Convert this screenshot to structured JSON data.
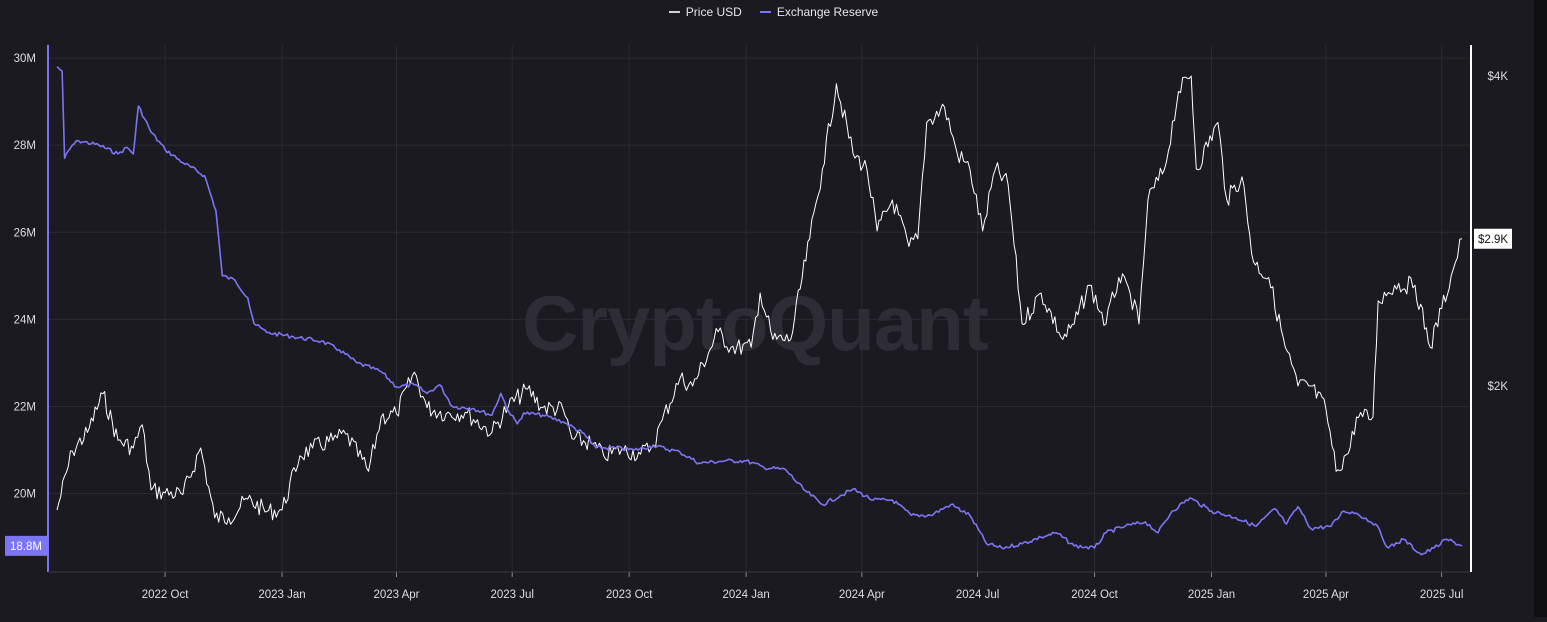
{
  "legend": {
    "price_label": "Price USD",
    "reserve_label": "Exchange Reserve"
  },
  "watermark": "CryptoQuant",
  "colors": {
    "price": "#ffffff",
    "reserve": "#7b74f5",
    "grid": "#2b2a32",
    "background": "#1b1a20",
    "axis_text": "#dcdce2"
  },
  "chart_data": {
    "type": "line",
    "x_ticks": [
      "2022 Oct",
      "2023 Jan",
      "2023 Apr",
      "2023 Jul",
      "2023 Oct",
      "2024 Jan",
      "2024 Apr",
      "2024 Jul",
      "2024 Oct",
      "2025 Jan",
      "2025 Apr",
      "2025 Jul"
    ],
    "x_range": [
      "2022-07-08",
      "2025-07-17"
    ],
    "left_axis": {
      "ticks": [
        "20M",
        "22M",
        "24M",
        "26M",
        "28M",
        "30M"
      ],
      "values": [
        20,
        22,
        24,
        26,
        28,
        30
      ],
      "range": [
        18.2,
        30.3
      ]
    },
    "right_axis": {
      "ticks": [
        "$2K",
        "$4K"
      ],
      "values": [
        2000,
        4000
      ],
      "range": [
        800,
        4200
      ]
    },
    "current_tags": {
      "reserve": "18.8M",
      "price": "$2.9K"
    },
    "series": [
      {
        "name": "Price USD",
        "axis": "right",
        "points": [
          [
            "2022-07-08",
            1200
          ],
          [
            "2022-07-20",
            1580
          ],
          [
            "2022-08-01",
            1700
          ],
          [
            "2022-08-13",
            1950
          ],
          [
            "2022-08-25",
            1650
          ],
          [
            "2022-09-06",
            1600
          ],
          [
            "2022-09-13",
            1750
          ],
          [
            "2022-09-20",
            1330
          ],
          [
            "2022-10-01",
            1310
          ],
          [
            "2022-10-15",
            1300
          ],
          [
            "2022-10-29",
            1600
          ],
          [
            "2022-11-09",
            1150
          ],
          [
            "2022-11-20",
            1150
          ],
          [
            "2022-12-05",
            1270
          ],
          [
            "2022-12-20",
            1190
          ],
          [
            "2023-01-01",
            1200
          ],
          [
            "2023-01-15",
            1550
          ],
          [
            "2023-01-25",
            1600
          ],
          [
            "2023-02-10",
            1650
          ],
          [
            "2023-02-20",
            1690
          ],
          [
            "2023-03-10",
            1450
          ],
          [
            "2023-03-20",
            1800
          ],
          [
            "2023-04-01",
            1820
          ],
          [
            "2023-04-15",
            2090
          ],
          [
            "2023-04-25",
            1860
          ],
          [
            "2023-05-10",
            1820
          ],
          [
            "2023-05-25",
            1830
          ],
          [
            "2023-06-15",
            1700
          ],
          [
            "2023-06-28",
            1870
          ],
          [
            "2023-07-13",
            1980
          ],
          [
            "2023-07-25",
            1860
          ],
          [
            "2023-08-10",
            1850
          ],
          [
            "2023-08-17",
            1660
          ],
          [
            "2023-09-01",
            1630
          ],
          [
            "2023-09-11",
            1550
          ],
          [
            "2023-09-25",
            1590
          ],
          [
            "2023-10-10",
            1560
          ],
          [
            "2023-10-20",
            1620
          ],
          [
            "2023-10-27",
            1780
          ],
          [
            "2023-11-10",
            2050
          ],
          [
            "2023-11-20",
            2000
          ],
          [
            "2023-12-10",
            2350
          ],
          [
            "2023-12-20",
            2250
          ],
          [
            "2024-01-05",
            2250
          ],
          [
            "2024-01-12",
            2600
          ],
          [
            "2024-01-22",
            2300
          ],
          [
            "2024-02-05",
            2300
          ],
          [
            "2024-02-20",
            2950
          ],
          [
            "2024-03-01",
            3400
          ],
          [
            "2024-03-12",
            3950
          ],
          [
            "2024-03-25",
            3500
          ],
          [
            "2024-04-05",
            3400
          ],
          [
            "2024-04-13",
            3000
          ],
          [
            "2024-04-25",
            3200
          ],
          [
            "2024-05-08",
            2900
          ],
          [
            "2024-05-15",
            2950
          ],
          [
            "2024-05-22",
            3700
          ],
          [
            "2024-06-05",
            3800
          ],
          [
            "2024-06-15",
            3500
          ],
          [
            "2024-06-25",
            3400
          ],
          [
            "2024-07-05",
            3000
          ],
          [
            "2024-07-15",
            3400
          ],
          [
            "2024-07-25",
            3300
          ],
          [
            "2024-08-05",
            2400
          ],
          [
            "2024-08-20",
            2600
          ],
          [
            "2024-09-06",
            2300
          ],
          [
            "2024-09-15",
            2400
          ],
          [
            "2024-09-27",
            2650
          ],
          [
            "2024-10-10",
            2400
          ],
          [
            "2024-10-20",
            2700
          ],
          [
            "2024-10-29",
            2600
          ],
          [
            "2024-11-05",
            2400
          ],
          [
            "2024-11-12",
            3200
          ],
          [
            "2024-11-25",
            3400
          ],
          [
            "2024-12-06",
            3900
          ],
          [
            "2024-12-16",
            4000
          ],
          [
            "2024-12-20",
            3400
          ],
          [
            "2025-01-06",
            3700
          ],
          [
            "2025-01-13",
            3200
          ],
          [
            "2025-01-25",
            3350
          ],
          [
            "2025-02-03",
            2800
          ],
          [
            "2025-02-15",
            2700
          ],
          [
            "2025-02-28",
            2250
          ],
          [
            "2025-03-10",
            2000
          ],
          [
            "2025-03-20",
            2000
          ],
          [
            "2025-04-01",
            1850
          ],
          [
            "2025-04-09",
            1450
          ],
          [
            "2025-04-20",
            1600
          ],
          [
            "2025-04-25",
            1800
          ],
          [
            "2025-05-08",
            1800
          ],
          [
            "2025-05-12",
            2550
          ],
          [
            "2025-05-25",
            2650
          ],
          [
            "2025-06-10",
            2650
          ],
          [
            "2025-06-22",
            2250
          ],
          [
            "2025-07-01",
            2500
          ],
          [
            "2025-07-10",
            2750
          ],
          [
            "2025-07-17",
            2950
          ]
        ]
      },
      {
        "name": "Exchange Reserve",
        "axis": "left",
        "points": [
          [
            "2022-07-08",
            29.8
          ],
          [
            "2022-07-12",
            29.7
          ],
          [
            "2022-07-14",
            27.7
          ],
          [
            "2022-07-20",
            28.0
          ],
          [
            "2022-07-25",
            28.1
          ],
          [
            "2022-08-10",
            28.0
          ],
          [
            "2022-08-25",
            27.8
          ],
          [
            "2022-09-01",
            27.95
          ],
          [
            "2022-09-06",
            27.8
          ],
          [
            "2022-09-10",
            28.9
          ],
          [
            "2022-09-20",
            28.3
          ],
          [
            "2022-10-01",
            27.9
          ],
          [
            "2022-10-15",
            27.6
          ],
          [
            "2022-11-01",
            27.3
          ],
          [
            "2022-11-10",
            26.5
          ],
          [
            "2022-11-15",
            25.0
          ],
          [
            "2022-11-25",
            24.9
          ],
          [
            "2022-12-05",
            24.5
          ],
          [
            "2022-12-10",
            23.9
          ],
          [
            "2022-12-20",
            23.7
          ],
          [
            "2023-01-10",
            23.6
          ],
          [
            "2023-02-01",
            23.5
          ],
          [
            "2023-02-15",
            23.3
          ],
          [
            "2023-03-01",
            23.0
          ],
          [
            "2023-03-20",
            22.8
          ],
          [
            "2023-04-01",
            22.45
          ],
          [
            "2023-04-15",
            22.5
          ],
          [
            "2023-04-25",
            22.3
          ],
          [
            "2023-05-05",
            22.5
          ],
          [
            "2023-05-15",
            22.0
          ],
          [
            "2023-06-01",
            21.95
          ],
          [
            "2023-06-15",
            21.8
          ],
          [
            "2023-06-22",
            22.3
          ],
          [
            "2023-06-28",
            21.9
          ],
          [
            "2023-07-05",
            21.6
          ],
          [
            "2023-07-10",
            21.85
          ],
          [
            "2023-07-25",
            21.8
          ],
          [
            "2023-08-10",
            21.65
          ],
          [
            "2023-08-25",
            21.4
          ],
          [
            "2023-09-05",
            21.05
          ],
          [
            "2023-09-20",
            21.05
          ],
          [
            "2023-10-05",
            21.0
          ],
          [
            "2023-10-20",
            21.1
          ],
          [
            "2023-11-10",
            20.95
          ],
          [
            "2023-11-25",
            20.7
          ],
          [
            "2023-12-15",
            20.75
          ],
          [
            "2024-01-01",
            20.75
          ],
          [
            "2024-01-15",
            20.6
          ],
          [
            "2024-02-01",
            20.55
          ],
          [
            "2024-02-15",
            20.1
          ],
          [
            "2024-03-01",
            19.75
          ],
          [
            "2024-03-15",
            19.95
          ],
          [
            "2024-03-25",
            20.1
          ],
          [
            "2024-04-10",
            19.85
          ],
          [
            "2024-04-25",
            19.85
          ],
          [
            "2024-05-10",
            19.5
          ],
          [
            "2024-05-25",
            19.5
          ],
          [
            "2024-06-10",
            19.75
          ],
          [
            "2024-06-25",
            19.5
          ],
          [
            "2024-07-08",
            18.85
          ],
          [
            "2024-07-20",
            18.75
          ],
          [
            "2024-08-05",
            18.85
          ],
          [
            "2024-08-20",
            19.0
          ],
          [
            "2024-09-01",
            19.1
          ],
          [
            "2024-09-15",
            18.8
          ],
          [
            "2024-10-01",
            18.75
          ],
          [
            "2024-10-10",
            19.1
          ],
          [
            "2024-10-25",
            19.25
          ],
          [
            "2024-11-10",
            19.35
          ],
          [
            "2024-11-20",
            19.1
          ],
          [
            "2024-12-01",
            19.6
          ],
          [
            "2024-12-15",
            19.9
          ],
          [
            "2025-01-01",
            19.6
          ],
          [
            "2025-01-20",
            19.45
          ],
          [
            "2025-02-05",
            19.25
          ],
          [
            "2025-02-20",
            19.65
          ],
          [
            "2025-03-01",
            19.3
          ],
          [
            "2025-03-10",
            19.7
          ],
          [
            "2025-03-20",
            19.2
          ],
          [
            "2025-04-05",
            19.25
          ],
          [
            "2025-04-15",
            19.6
          ],
          [
            "2025-04-25",
            19.55
          ],
          [
            "2025-05-10",
            19.3
          ],
          [
            "2025-05-20",
            18.75
          ],
          [
            "2025-06-01",
            18.95
          ],
          [
            "2025-06-15",
            18.6
          ],
          [
            "2025-06-25",
            18.75
          ],
          [
            "2025-07-05",
            18.95
          ],
          [
            "2025-07-17",
            18.8
          ]
        ]
      }
    ]
  }
}
